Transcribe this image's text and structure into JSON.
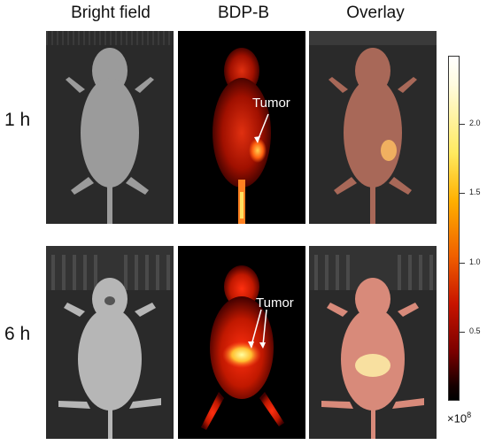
{
  "columns": [
    "Bright field",
    "BDP-B",
    "Overlay"
  ],
  "rows": [
    "1 h",
    "6 h"
  ],
  "annotations": {
    "tumor_1h": "Tumor",
    "tumor_6h": "Tumor"
  },
  "scale": {
    "ticks": [
      "2.0",
      "1.5",
      "1.0",
      "0.5"
    ],
    "multiplier_base": "×10",
    "multiplier_exp": "8"
  },
  "colors": {
    "heat_low": "#000000",
    "heat_mid": "#e02000",
    "heat_high": "#ffffa0"
  }
}
